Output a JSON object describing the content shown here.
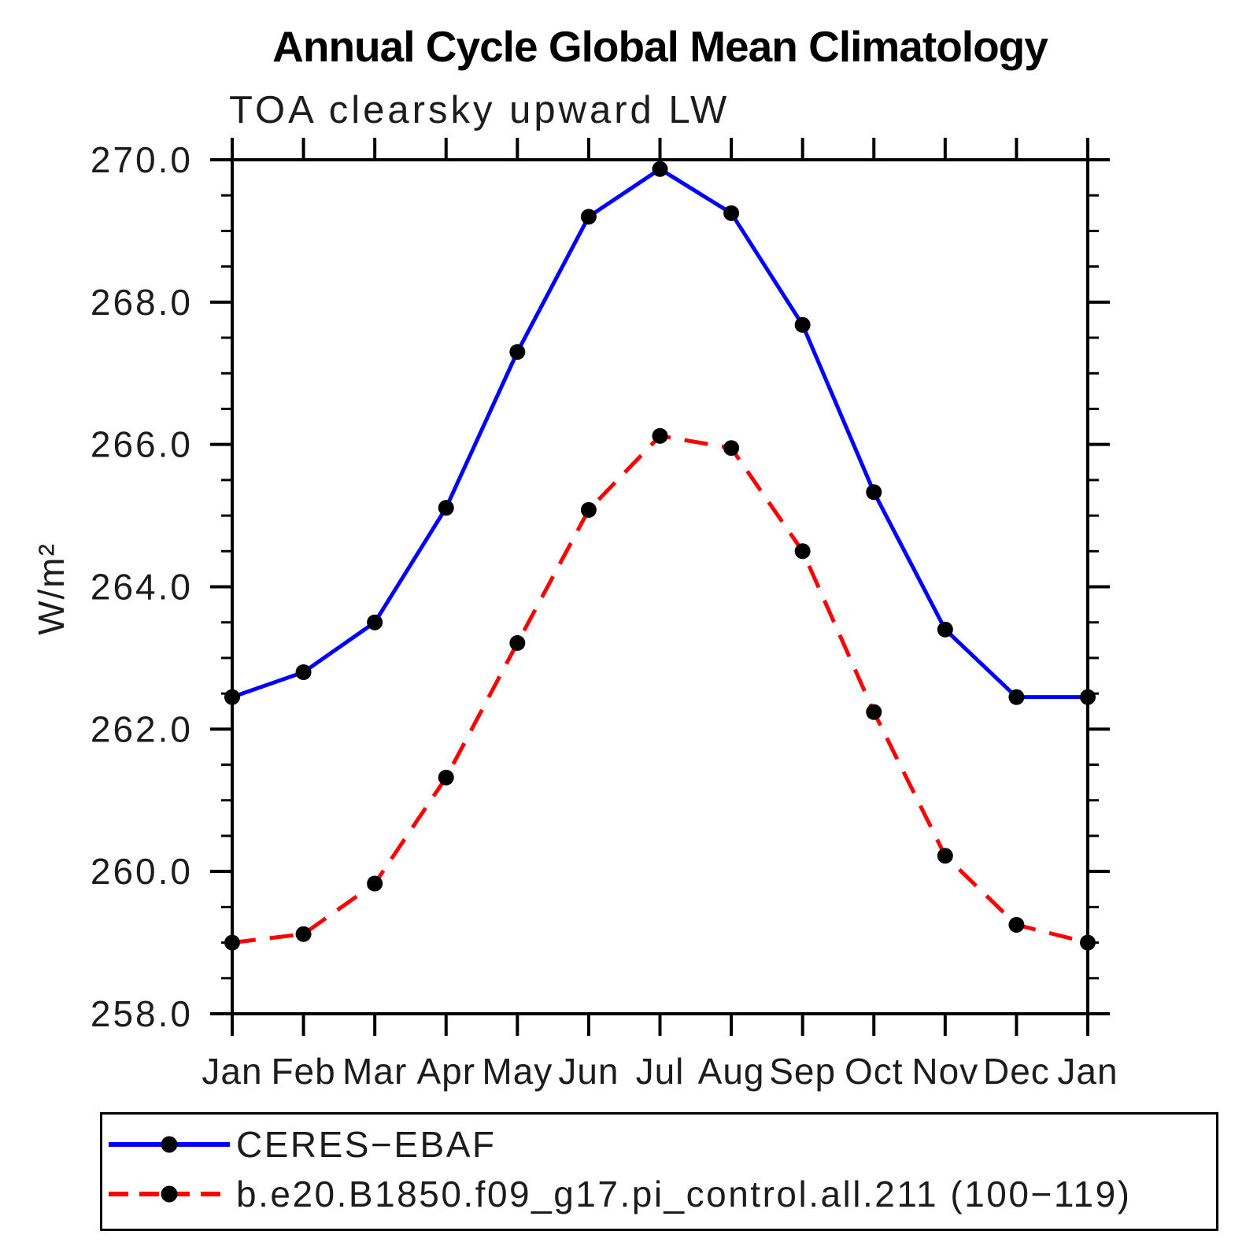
{
  "title": "Annual Cycle Global Mean Climatology",
  "subtitle": "TOA clearsky upward LW",
  "chart_data": {
    "type": "line",
    "x_categories": [
      "Jan",
      "Feb",
      "Mar",
      "Apr",
      "May",
      "Jun",
      "Jul",
      "Aug",
      "Sep",
      "Oct",
      "Nov",
      "Dec",
      "Jan"
    ],
    "ylabel": "W/m²",
    "ylim": [
      258.0,
      270.0
    ],
    "y_major_tick_labels": [
      "270.0",
      "268.0",
      "266.0",
      "264.0",
      "262.0",
      "260.0",
      "258.0"
    ],
    "y_major_step": 2.0,
    "y_minor_step": 0.5,
    "grid": false,
    "legend_position": "bottom",
    "axis_color": "#000000",
    "marker_color": "#000000",
    "series": [
      {
        "name": "CERES−EBAF",
        "color": "#0000FF",
        "line_style": "solid",
        "marker": "circle",
        "values": [
          262.45,
          262.8,
          263.5,
          265.11,
          267.3,
          269.2,
          269.87,
          269.25,
          267.68,
          265.33,
          263.4,
          262.45,
          262.45
        ]
      },
      {
        "name": "b.e20.B1850.f09_g17.pi_control.all.211 (100−119)",
        "color": "#FF0000",
        "line_style": "dashed",
        "marker": "circle",
        "values": [
          259.0,
          259.12,
          259.83,
          261.32,
          263.21,
          265.08,
          266.12,
          265.95,
          264.5,
          262.24,
          260.22,
          259.25,
          259.0
        ]
      }
    ]
  }
}
